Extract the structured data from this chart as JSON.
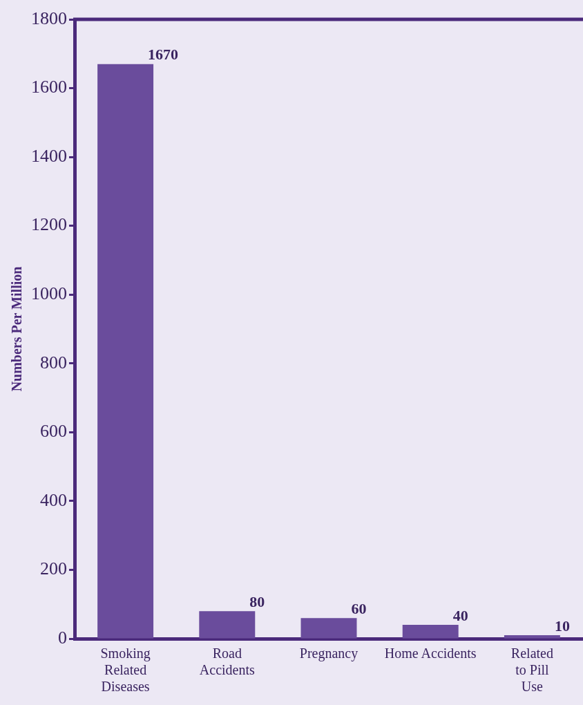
{
  "chart_data": {
    "type": "bar",
    "categories": [
      "Smoking\nRelated\nDiseases",
      "Road\nAccidents",
      "Pregnancy",
      "Home Accidents",
      "Related\nto Pill\nUse"
    ],
    "values": [
      1670,
      80,
      60,
      40,
      10
    ],
    "color": "#6a4c9c",
    "ylabel": "Numbers Per Million",
    "ylim": [
      0,
      1800
    ],
    "yticks": [
      0,
      200,
      400,
      600,
      800,
      1000,
      1200,
      1400,
      1600,
      1800
    ],
    "grid": false,
    "legend": false,
    "data_labels": true
  }
}
